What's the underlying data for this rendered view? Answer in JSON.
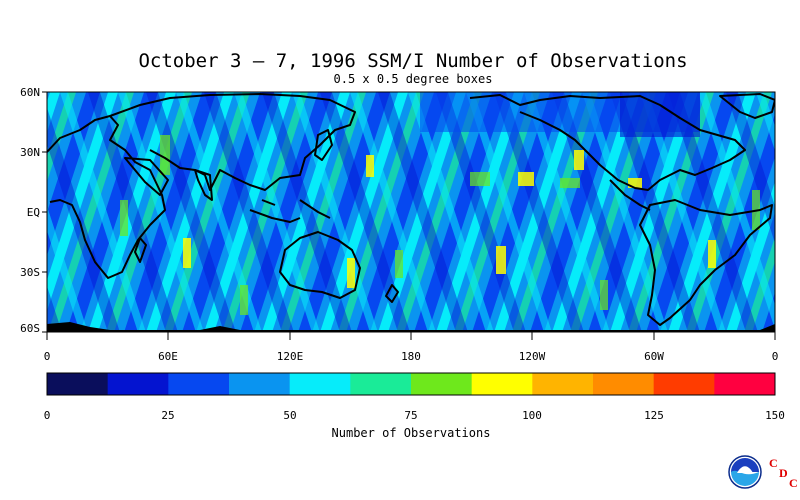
{
  "title": "October 3 – 7, 1996 SSM/I Number of Observations",
  "subtitle": "0.5 x 0.5 degree boxes",
  "lat_labels": [
    "60N",
    "30N",
    "EQ",
    "30S",
    "60S"
  ],
  "lon_labels": [
    "0",
    "60E",
    "120E",
    "180",
    "120W",
    "60W",
    "0"
  ],
  "colorbar": {
    "title": "Number of Observations",
    "ticks": [
      "0",
      "25",
      "50",
      "75",
      "100",
      "125",
      "150"
    ],
    "colors": [
      "#0a0e5c",
      "#0414d0",
      "#0648f0",
      "#0a94f0",
      "#06ecfa",
      "#1aeb98",
      "#6ee81c",
      "#ffff00",
      "#ffb400",
      "#ff8c00",
      "#ff3c00",
      "#ff0040"
    ],
    "range": [
      0,
      150
    ]
  },
  "logo": {
    "name": "noaa-logo",
    "letters": [
      "C",
      "D",
      "C"
    ]
  },
  "colors": {
    "ocean_base": "#0a94f0",
    "land_outline": "#000000"
  }
}
